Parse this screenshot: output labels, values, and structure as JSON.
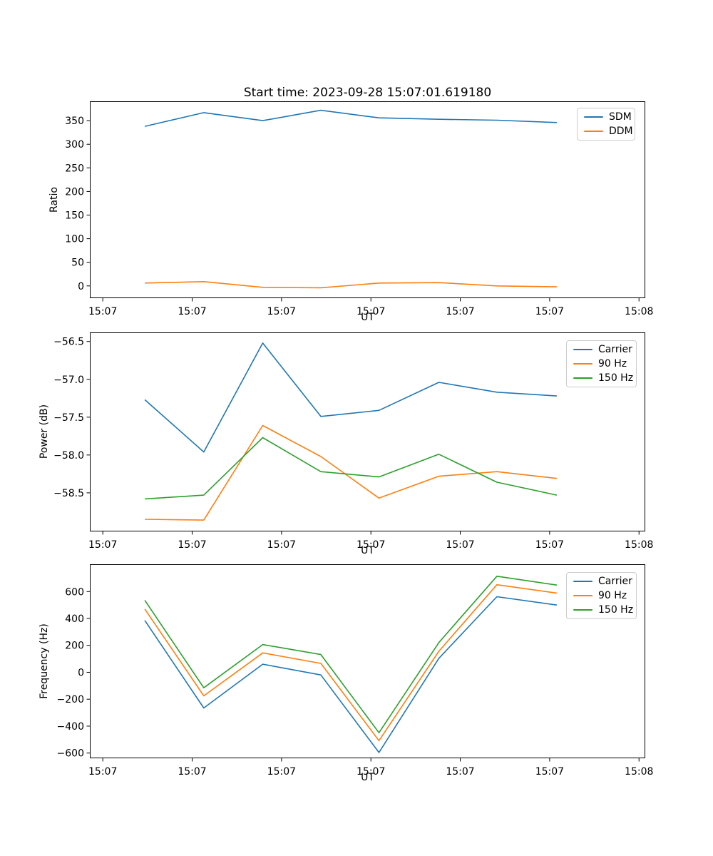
{
  "figure": {
    "title": "Start time: 2023-09-28 15:07:01.619180",
    "background": "#ffffff",
    "text_color": "#000000",
    "axis_color": "#000000"
  },
  "chart_data": [
    {
      "type": "line",
      "title": "",
      "xlabel": "UT",
      "ylabel": "Ratio",
      "x_seconds": [
        4.7,
        11.3,
        17.9,
        24.4,
        30.9,
        37.6,
        44.1,
        50.8
      ],
      "xlim": [
        -1.45,
        60.7
      ],
      "ylim": [
        -26,
        391
      ],
      "grid": false,
      "legend_position": "upper-right",
      "xticks": [
        0,
        10,
        20,
        30,
        40,
        50,
        60
      ],
      "xticklabels": [
        "15:07",
        "15:07",
        "15:07",
        "15:07",
        "15:07",
        "15:07",
        "15:08"
      ],
      "yticks": [
        0,
        50,
        100,
        150,
        200,
        250,
        300,
        350
      ],
      "yticklabels": [
        "0",
        "50",
        "100",
        "150",
        "200",
        "250",
        "300",
        "350"
      ],
      "series": [
        {
          "name": "SDM",
          "color": "#1f77b4",
          "values": [
            338,
            367,
            350,
            372,
            356,
            353,
            351,
            346
          ]
        },
        {
          "name": "DDM",
          "color": "#ff7f0e",
          "values": [
            6,
            9,
            -3,
            -4,
            6,
            7,
            0,
            -2
          ]
        }
      ]
    },
    {
      "type": "line",
      "title": "",
      "xlabel": "UT",
      "ylabel": "Power (dB)",
      "x_seconds": [
        4.7,
        11.3,
        17.9,
        24.4,
        30.9,
        37.6,
        44.1,
        50.8
      ],
      "xlim": [
        -1.45,
        60.7
      ],
      "ylim": [
        -59.01,
        -56.38
      ],
      "grid": false,
      "legend_position": "upper-right",
      "xticks": [
        0,
        10,
        20,
        30,
        40,
        50,
        60
      ],
      "xticklabels": [
        "15:07",
        "15:07",
        "15:07",
        "15:07",
        "15:07",
        "15:07",
        "15:08"
      ],
      "yticks": [
        -56.5,
        -57.0,
        -57.5,
        -58.0,
        -58.5
      ],
      "yticklabels": [
        "−56.5",
        "−57.0",
        "−57.5",
        "−58.0",
        "−58.5"
      ],
      "series": [
        {
          "name": "Carrier",
          "color": "#1f77b4",
          "values": [
            -57.27,
            -57.96,
            -56.52,
            -57.49,
            -57.41,
            -57.04,
            -57.17,
            -57.22
          ]
        },
        {
          "name": "90 Hz",
          "color": "#ff7f0e",
          "values": [
            -58.85,
            -58.86,
            -57.61,
            -58.02,
            -58.57,
            -58.28,
            -58.22,
            -58.31
          ]
        },
        {
          "name": "150 Hz",
          "color": "#2ca02c",
          "values": [
            -58.58,
            -58.53,
            -57.77,
            -58.22,
            -58.29,
            -57.99,
            -58.36,
            -58.53
          ]
        }
      ]
    },
    {
      "type": "line",
      "title": "",
      "xlabel": "UT",
      "ylabel": "Frequency (Hz)",
      "x_seconds": [
        4.7,
        11.3,
        17.9,
        24.4,
        30.9,
        37.6,
        44.1,
        50.8
      ],
      "xlim": [
        -1.45,
        60.7
      ],
      "ylim": [
        -639,
        803
      ],
      "grid": false,
      "legend_position": "upper-right",
      "xticks": [
        0,
        10,
        20,
        30,
        40,
        50,
        60
      ],
      "xticklabels": [
        "15:07",
        "15:07",
        "15:07",
        "15:07",
        "15:07",
        "15:07",
        "15:08"
      ],
      "yticks": [
        600,
        400,
        200,
        0,
        -200,
        -400,
        -600
      ],
      "yticklabels": [
        "600",
        "400",
        "200",
        "0",
        "−200",
        "−400",
        "−600"
      ],
      "series": [
        {
          "name": "Carrier",
          "color": "#1f77b4",
          "values": [
            385,
            -265,
            60,
            -20,
            -596,
            104,
            562,
            500
          ]
        },
        {
          "name": "90 Hz",
          "color": "#ff7f0e",
          "values": [
            470,
            -175,
            144,
            66,
            -508,
            156,
            651,
            589
          ]
        },
        {
          "name": "150 Hz",
          "color": "#2ca02c",
          "values": [
            535,
            -115,
            206,
            132,
            -449,
            221,
            714,
            648
          ]
        }
      ]
    }
  ]
}
